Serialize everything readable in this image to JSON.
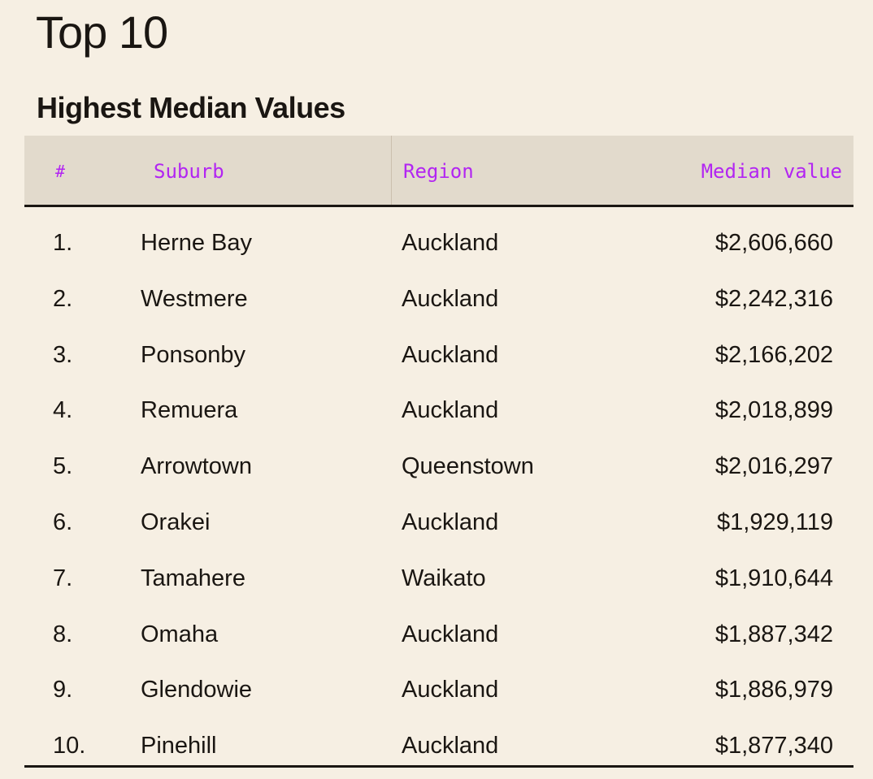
{
  "page": {
    "title": "Top 10"
  },
  "table": {
    "title": "Highest Median Values",
    "columns": {
      "rank": "#",
      "suburb": "Suburb",
      "region": "Region",
      "median_value": "Median value"
    },
    "rows": [
      {
        "rank": "1.",
        "suburb": "Herne Bay",
        "region": "Auckland",
        "median_value": "$2,606,660"
      },
      {
        "rank": "2.",
        "suburb": "Westmere",
        "region": "Auckland",
        "median_value": "$2,242,316"
      },
      {
        "rank": "3.",
        "suburb": "Ponsonby",
        "region": "Auckland",
        "median_value": "$2,166,202"
      },
      {
        "rank": "4.",
        "suburb": "Remuera",
        "region": "Auckland",
        "median_value": "$2,018,899"
      },
      {
        "rank": "5.",
        "suburb": "Arrowtown",
        "region": "Queenstown",
        "median_value": "$2,016,297"
      },
      {
        "rank": "6.",
        "suburb": "Orakei",
        "region": "Auckland",
        "median_value": "$1,929,119"
      },
      {
        "rank": "7.",
        "suburb": "Tamahere",
        "region": "Waikato",
        "median_value": "$1,910,644"
      },
      {
        "rank": "8.",
        "suburb": "Omaha",
        "region": "Auckland",
        "median_value": "$1,887,342"
      },
      {
        "rank": "9.",
        "suburb": "Glendowie",
        "region": "Auckland",
        "median_value": "$1,886,979"
      },
      {
        "rank": "10.",
        "suburb": "Pinehill",
        "region": "Auckland",
        "median_value": "$1,877,340"
      }
    ]
  },
  "colors": {
    "background": "#f6efe3",
    "header_background": "#e2dacc",
    "header_text": "#b225f2",
    "text": "#1a1612"
  }
}
